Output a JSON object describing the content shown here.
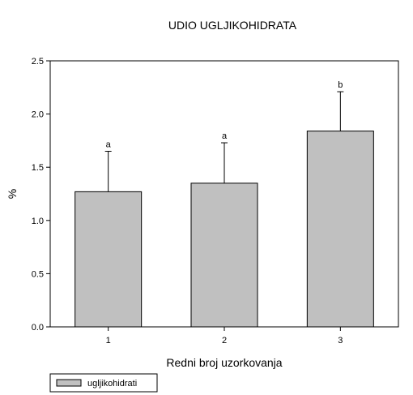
{
  "chart_data": {
    "type": "bar",
    "title": "UDIO UGLJIKOHIDRATA",
    "xlabel": "Redni broj uzorkovanja",
    "ylabel": "%",
    "categories": [
      "1",
      "2",
      "3"
    ],
    "series": [
      {
        "name": "ugljikohidrati",
        "values": [
          1.27,
          1.35,
          1.84
        ],
        "error_plus": [
          0.38,
          0.38,
          0.37
        ],
        "significance_labels": [
          "a",
          "a",
          "b"
        ]
      }
    ],
    "ylim": [
      0.0,
      2.5
    ],
    "yticks": [
      0.0,
      0.5,
      1.0,
      1.5,
      2.0,
      2.5
    ],
    "ytick_labels": [
      "0.0",
      "0.5",
      "1.0",
      "1.5",
      "2.0",
      "2.5"
    ],
    "grid": false,
    "legend_position": "bottom-left",
    "colors": {
      "bar_fill": "#c0c0c0",
      "bar_stroke": "#000000",
      "axis": "#000000",
      "background": "#ffffff"
    }
  }
}
